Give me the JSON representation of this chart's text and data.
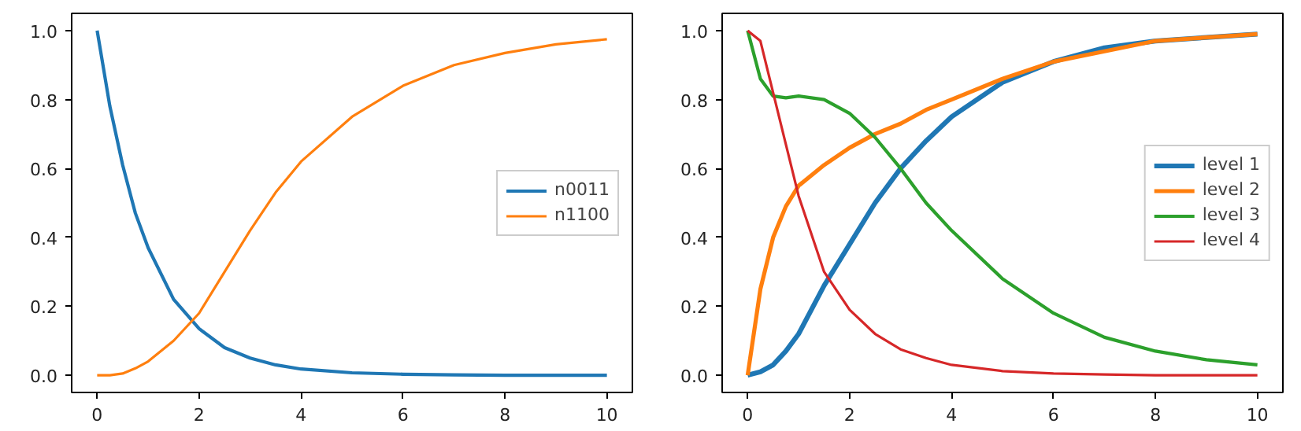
{
  "chart_data": [
    {
      "type": "line",
      "x": [
        0,
        0.25,
        0.5,
        0.75,
        1,
        1.5,
        2,
        2.5,
        3,
        3.5,
        4,
        5,
        6,
        7,
        8,
        9,
        10
      ],
      "series": [
        {
          "name": "n0011",
          "color": "#1f77b4",
          "values": [
            1,
            0.78,
            0.61,
            0.47,
            0.37,
            0.22,
            0.135,
            0.08,
            0.05,
            0.03,
            0.018,
            0.007,
            0.003,
            0.001,
            0,
            0,
            0
          ]
        },
        {
          "name": "n1100",
          "color": "#ff7f0e",
          "values": [
            0,
            0,
            0.005,
            0.02,
            0.04,
            0.1,
            0.18,
            0.3,
            0.42,
            0.53,
            0.62,
            0.75,
            0.84,
            0.9,
            0.935,
            0.96,
            0.975
          ]
        }
      ],
      "xlim": [
        -0.5,
        10.5
      ],
      "ylim": [
        -0.05,
        1.05
      ],
      "xticks": [
        0,
        2,
        4,
        6,
        8,
        10
      ],
      "yticks": [
        {
          "value": 0,
          "label": "0.0"
        },
        {
          "value": 0.2,
          "label": "0.2"
        },
        {
          "value": 0.4,
          "label": "0.4"
        },
        {
          "value": 0.6,
          "label": "0.6"
        },
        {
          "value": 0.8,
          "label": "0.8"
        },
        {
          "value": 1,
          "label": "1.0"
        }
      ],
      "grid": false,
      "legend": "right"
    },
    {
      "type": "line",
      "x": [
        0,
        0.25,
        0.5,
        0.75,
        1,
        1.5,
        2,
        2.5,
        3,
        3.5,
        4,
        5,
        6,
        7,
        8,
        9,
        10
      ],
      "series": [
        {
          "name": "level 1",
          "color": "#1f77b4",
          "values": [
            0,
            0.01,
            0.03,
            0.07,
            0.12,
            0.26,
            0.38,
            0.5,
            0.6,
            0.68,
            0.75,
            0.85,
            0.91,
            0.95,
            0.97,
            0.98,
            0.99
          ]
        },
        {
          "name": "level 2",
          "color": "#ff7f0e",
          "values": [
            0,
            0.25,
            0.4,
            0.49,
            0.55,
            0.61,
            0.66,
            0.7,
            0.73,
            0.77,
            0.8,
            0.86,
            0.91,
            0.94,
            0.97,
            0.98,
            0.99
          ]
        },
        {
          "name": "level 3",
          "color": "#2ca02c",
          "values": [
            1,
            0.86,
            0.81,
            0.805,
            0.81,
            0.8,
            0.76,
            0.69,
            0.6,
            0.5,
            0.42,
            0.28,
            0.18,
            0.11,
            0.07,
            0.045,
            0.03
          ]
        },
        {
          "name": "level 4",
          "color": "#d62728",
          "values": [
            1,
            0.97,
            0.82,
            0.67,
            0.52,
            0.3,
            0.19,
            0.12,
            0.075,
            0.05,
            0.03,
            0.012,
            0.005,
            0.002,
            0,
            0,
            0
          ]
        }
      ],
      "xlim": [
        -0.5,
        10.5
      ],
      "ylim": [
        -0.05,
        1.05
      ],
      "xticks": [
        0,
        2,
        4,
        6,
        8,
        10
      ],
      "yticks": [
        {
          "value": 0,
          "label": "0.0"
        },
        {
          "value": 0.2,
          "label": "0.2"
        },
        {
          "value": 0.4,
          "label": "0.4"
        },
        {
          "value": 0.6,
          "label": "0.6"
        },
        {
          "value": 0.8,
          "label": "0.8"
        },
        {
          "value": 1,
          "label": "1.0"
        }
      ],
      "grid": false,
      "legend": "right"
    }
  ]
}
